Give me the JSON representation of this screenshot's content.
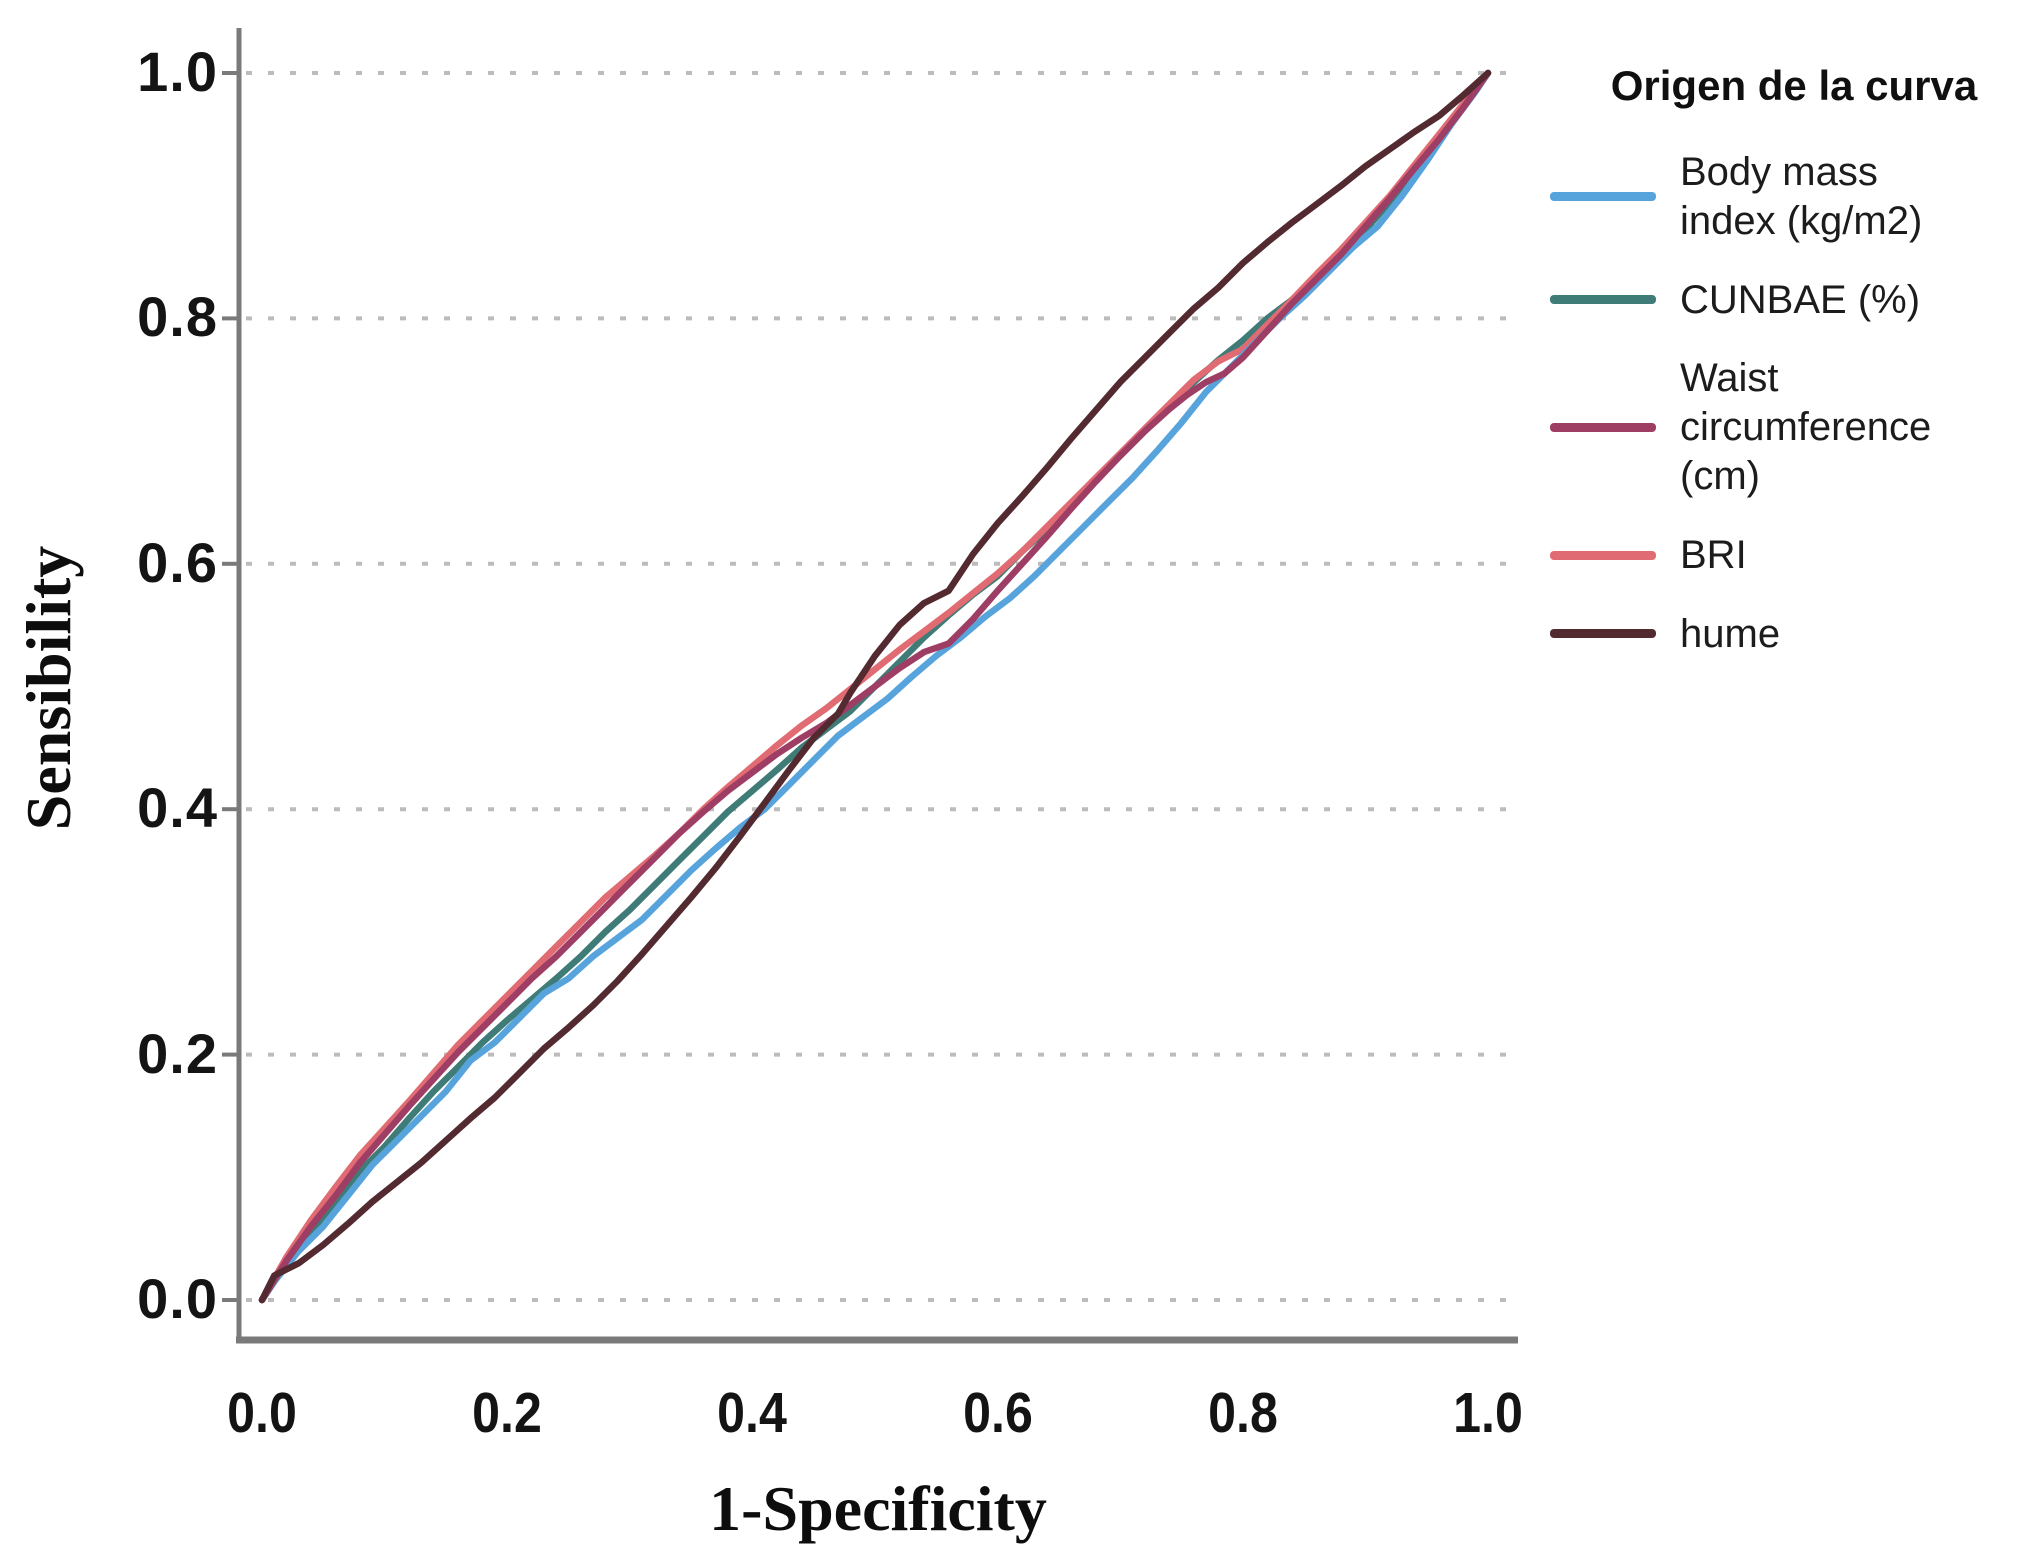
{
  "legend": {
    "title": "Origen de la curva",
    "items": [
      {
        "id": "bmi",
        "label": "Body mass\nindex (kg/m2)",
        "color": "#57A3DC"
      },
      {
        "id": "cunbae",
        "label": "CUNBAE (%)",
        "color": "#3F7B77"
      },
      {
        "id": "waist",
        "label": "Waist\ncircumference\n(cm)",
        "color": "#9E3E64"
      },
      {
        "id": "bri",
        "label": "BRI",
        "color": "#E06B72"
      },
      {
        "id": "hume",
        "label": "hume",
        "color": "#532A30"
      }
    ]
  },
  "chart_data": {
    "type": "line",
    "subtype": "ROC curves",
    "title": "",
    "xlabel": "1-Specificity",
    "ylabel": "Sensibility",
    "xlim": [
      0,
      1
    ],
    "ylim": [
      0,
      1
    ],
    "x_ticks": [
      "0.0",
      "0.2",
      "0.4",
      "0.6",
      "0.8",
      "1.0"
    ],
    "y_ticks": [
      "0.0",
      "0.2",
      "0.4",
      "0.6",
      "0.8",
      "1.0"
    ],
    "x_tick_values": [
      0,
      0.2,
      0.4,
      0.6,
      0.8,
      1.0
    ],
    "y_tick_values": [
      0,
      0.2,
      0.4,
      0.6,
      0.8,
      1.0
    ],
    "grid": "horizontal dotted lines only",
    "legend_title": "Origen de la curva",
    "legend_position": "right",
    "colors": {
      "axis": "#7A7A7A",
      "grid": "#BCBCBC"
    },
    "series": [
      {
        "id": "cunbae",
        "name": "CUNBAE (%)",
        "color": "#3F7B77",
        "points": [
          [
            0,
            0
          ],
          [
            0.02,
            0.03
          ],
          [
            0.04,
            0.055
          ],
          [
            0.06,
            0.08
          ],
          [
            0.08,
            0.105
          ],
          [
            0.1,
            0.125
          ],
          [
            0.12,
            0.148
          ],
          [
            0.14,
            0.17
          ],
          [
            0.16,
            0.19
          ],
          [
            0.18,
            0.21
          ],
          [
            0.2,
            0.228
          ],
          [
            0.22,
            0.245
          ],
          [
            0.24,
            0.262
          ],
          [
            0.26,
            0.28
          ],
          [
            0.28,
            0.3
          ],
          [
            0.3,
            0.318
          ],
          [
            0.32,
            0.338
          ],
          [
            0.34,
            0.358
          ],
          [
            0.36,
            0.378
          ],
          [
            0.38,
            0.398
          ],
          [
            0.4,
            0.415
          ],
          [
            0.42,
            0.432
          ],
          [
            0.44,
            0.45
          ],
          [
            0.46,
            0.465
          ],
          [
            0.48,
            0.48
          ],
          [
            0.5,
            0.5
          ],
          [
            0.52,
            0.52
          ],
          [
            0.54,
            0.54
          ],
          [
            0.56,
            0.558
          ],
          [
            0.58,
            0.575
          ],
          [
            0.6,
            0.59
          ],
          [
            0.62,
            0.61
          ],
          [
            0.64,
            0.628
          ],
          [
            0.66,
            0.648
          ],
          [
            0.68,
            0.668
          ],
          [
            0.7,
            0.688
          ],
          [
            0.72,
            0.708
          ],
          [
            0.74,
            0.728
          ],
          [
            0.76,
            0.748
          ],
          [
            0.78,
            0.766
          ],
          [
            0.8,
            0.782
          ],
          [
            0.82,
            0.8
          ],
          [
            0.84,
            0.815
          ],
          [
            0.86,
            0.832
          ],
          [
            0.88,
            0.85
          ],
          [
            0.9,
            0.872
          ],
          [
            0.92,
            0.895
          ],
          [
            0.94,
            0.92
          ],
          [
            0.96,
            0.948
          ],
          [
            0.98,
            0.975
          ],
          [
            1,
            1
          ]
        ]
      },
      {
        "id": "bri",
        "name": "BRI",
        "color": "#E06B72",
        "points": [
          [
            0,
            0
          ],
          [
            0.02,
            0.035
          ],
          [
            0.04,
            0.065
          ],
          [
            0.06,
            0.092
          ],
          [
            0.08,
            0.118
          ],
          [
            0.1,
            0.14
          ],
          [
            0.12,
            0.162
          ],
          [
            0.14,
            0.185
          ],
          [
            0.16,
            0.208
          ],
          [
            0.18,
            0.228
          ],
          [
            0.2,
            0.248
          ],
          [
            0.22,
            0.268
          ],
          [
            0.24,
            0.288
          ],
          [
            0.26,
            0.308
          ],
          [
            0.28,
            0.328
          ],
          [
            0.3,
            0.345
          ],
          [
            0.32,
            0.362
          ],
          [
            0.34,
            0.38
          ],
          [
            0.36,
            0.4
          ],
          [
            0.38,
            0.418
          ],
          [
            0.4,
            0.435
          ],
          [
            0.42,
            0.452
          ],
          [
            0.44,
            0.468
          ],
          [
            0.46,
            0.482
          ],
          [
            0.48,
            0.498
          ],
          [
            0.5,
            0.514
          ],
          [
            0.52,
            0.53
          ],
          [
            0.54,
            0.545
          ],
          [
            0.56,
            0.56
          ],
          [
            0.58,
            0.576
          ],
          [
            0.6,
            0.592
          ],
          [
            0.62,
            0.61
          ],
          [
            0.64,
            0.63
          ],
          [
            0.66,
            0.65
          ],
          [
            0.68,
            0.67
          ],
          [
            0.7,
            0.69
          ],
          [
            0.72,
            0.71
          ],
          [
            0.74,
            0.73
          ],
          [
            0.76,
            0.75
          ],
          [
            0.78,
            0.765
          ],
          [
            0.8,
            0.775
          ],
          [
            0.82,
            0.795
          ],
          [
            0.84,
            0.815
          ],
          [
            0.86,
            0.836
          ],
          [
            0.88,
            0.856
          ],
          [
            0.9,
            0.878
          ],
          [
            0.92,
            0.9
          ],
          [
            0.94,
            0.925
          ],
          [
            0.96,
            0.95
          ],
          [
            0.98,
            0.975
          ],
          [
            1,
            1
          ]
        ]
      },
      {
        "id": "bmi",
        "name": "Body mass index (kg/m2)",
        "color": "#57A3DC",
        "points": [
          [
            0,
            0
          ],
          [
            0.01,
            0.015
          ],
          [
            0.03,
            0.04
          ],
          [
            0.05,
            0.06
          ],
          [
            0.07,
            0.085
          ],
          [
            0.09,
            0.11
          ],
          [
            0.11,
            0.13
          ],
          [
            0.13,
            0.15
          ],
          [
            0.15,
            0.17
          ],
          [
            0.17,
            0.195
          ],
          [
            0.19,
            0.21
          ],
          [
            0.21,
            0.23
          ],
          [
            0.23,
            0.25
          ],
          [
            0.25,
            0.262
          ],
          [
            0.27,
            0.28
          ],
          [
            0.29,
            0.295
          ],
          [
            0.31,
            0.31
          ],
          [
            0.33,
            0.33
          ],
          [
            0.35,
            0.35
          ],
          [
            0.37,
            0.368
          ],
          [
            0.39,
            0.385
          ],
          [
            0.41,
            0.4
          ],
          [
            0.43,
            0.42
          ],
          [
            0.45,
            0.44
          ],
          [
            0.47,
            0.46
          ],
          [
            0.49,
            0.475
          ],
          [
            0.51,
            0.49
          ],
          [
            0.53,
            0.508
          ],
          [
            0.55,
            0.525
          ],
          [
            0.57,
            0.54
          ],
          [
            0.59,
            0.557
          ],
          [
            0.61,
            0.572
          ],
          [
            0.63,
            0.59
          ],
          [
            0.65,
            0.61
          ],
          [
            0.67,
            0.63
          ],
          [
            0.69,
            0.65
          ],
          [
            0.71,
            0.67
          ],
          [
            0.73,
            0.692
          ],
          [
            0.75,
            0.715
          ],
          [
            0.77,
            0.74
          ],
          [
            0.79,
            0.76
          ],
          [
            0.81,
            0.78
          ],
          [
            0.83,
            0.8
          ],
          [
            0.85,
            0.818
          ],
          [
            0.87,
            0.838
          ],
          [
            0.89,
            0.858
          ],
          [
            0.91,
            0.875
          ],
          [
            0.93,
            0.9
          ],
          [
            0.95,
            0.928
          ],
          [
            0.97,
            0.958
          ],
          [
            0.99,
            0.985
          ],
          [
            1,
            1
          ]
        ]
      },
      {
        "id": "waist",
        "name": "Waist circumference (cm)",
        "color": "#9E3E64",
        "points": [
          [
            0,
            0
          ],
          [
            0.02,
            0.032
          ],
          [
            0.04,
            0.06
          ],
          [
            0.06,
            0.085
          ],
          [
            0.08,
            0.112
          ],
          [
            0.1,
            0.135
          ],
          [
            0.12,
            0.158
          ],
          [
            0.14,
            0.18
          ],
          [
            0.16,
            0.202
          ],
          [
            0.18,
            0.222
          ],
          [
            0.2,
            0.242
          ],
          [
            0.22,
            0.262
          ],
          [
            0.24,
            0.28
          ],
          [
            0.26,
            0.3
          ],
          [
            0.28,
            0.32
          ],
          [
            0.3,
            0.34
          ],
          [
            0.32,
            0.36
          ],
          [
            0.34,
            0.38
          ],
          [
            0.36,
            0.398
          ],
          [
            0.38,
            0.415
          ],
          [
            0.4,
            0.43
          ],
          [
            0.42,
            0.445
          ],
          [
            0.44,
            0.458
          ],
          [
            0.46,
            0.47
          ],
          [
            0.48,
            0.485
          ],
          [
            0.5,
            0.5
          ],
          [
            0.52,
            0.515
          ],
          [
            0.54,
            0.528
          ],
          [
            0.56,
            0.535
          ],
          [
            0.58,
            0.555
          ],
          [
            0.6,
            0.578
          ],
          [
            0.62,
            0.6
          ],
          [
            0.64,
            0.622
          ],
          [
            0.66,
            0.645
          ],
          [
            0.68,
            0.667
          ],
          [
            0.7,
            0.688
          ],
          [
            0.72,
            0.708
          ],
          [
            0.74,
            0.726
          ],
          [
            0.755,
            0.738
          ],
          [
            0.77,
            0.748
          ],
          [
            0.785,
            0.755
          ],
          [
            0.8,
            0.768
          ],
          [
            0.82,
            0.79
          ],
          [
            0.84,
            0.812
          ],
          [
            0.86,
            0.832
          ],
          [
            0.88,
            0.852
          ],
          [
            0.9,
            0.875
          ],
          [
            0.92,
            0.898
          ],
          [
            0.94,
            0.922
          ],
          [
            0.96,
            0.946
          ],
          [
            0.98,
            0.972
          ],
          [
            1,
            1
          ]
        ]
      },
      {
        "id": "hume",
        "name": "hume",
        "color": "#532A30",
        "points": [
          [
            0,
            0
          ],
          [
            0.01,
            0.02
          ],
          [
            0.03,
            0.03
          ],
          [
            0.05,
            0.045
          ],
          [
            0.07,
            0.062
          ],
          [
            0.09,
            0.08
          ],
          [
            0.11,
            0.096
          ],
          [
            0.13,
            0.112
          ],
          [
            0.15,
            0.13
          ],
          [
            0.17,
            0.148
          ],
          [
            0.19,
            0.165
          ],
          [
            0.21,
            0.185
          ],
          [
            0.23,
            0.205
          ],
          [
            0.25,
            0.222
          ],
          [
            0.27,
            0.24
          ],
          [
            0.29,
            0.26
          ],
          [
            0.31,
            0.282
          ],
          [
            0.33,
            0.305
          ],
          [
            0.35,
            0.328
          ],
          [
            0.37,
            0.352
          ],
          [
            0.39,
            0.378
          ],
          [
            0.41,
            0.405
          ],
          [
            0.43,
            0.432
          ],
          [
            0.45,
            0.458
          ],
          [
            0.47,
            0.478
          ],
          [
            0.48,
            0.495
          ],
          [
            0.5,
            0.525
          ],
          [
            0.52,
            0.55
          ],
          [
            0.54,
            0.568
          ],
          [
            0.56,
            0.578
          ],
          [
            0.58,
            0.608
          ],
          [
            0.6,
            0.633
          ],
          [
            0.62,
            0.655
          ],
          [
            0.64,
            0.678
          ],
          [
            0.66,
            0.702
          ],
          [
            0.68,
            0.725
          ],
          [
            0.7,
            0.748
          ],
          [
            0.72,
            0.768
          ],
          [
            0.74,
            0.788
          ],
          [
            0.76,
            0.808
          ],
          [
            0.78,
            0.825
          ],
          [
            0.8,
            0.845
          ],
          [
            0.82,
            0.862
          ],
          [
            0.84,
            0.878
          ],
          [
            0.86,
            0.893
          ],
          [
            0.88,
            0.908
          ],
          [
            0.9,
            0.924
          ],
          [
            0.92,
            0.938
          ],
          [
            0.94,
            0.952
          ],
          [
            0.96,
            0.965
          ],
          [
            0.98,
            0.982
          ],
          [
            1,
            1
          ]
        ]
      }
    ]
  }
}
